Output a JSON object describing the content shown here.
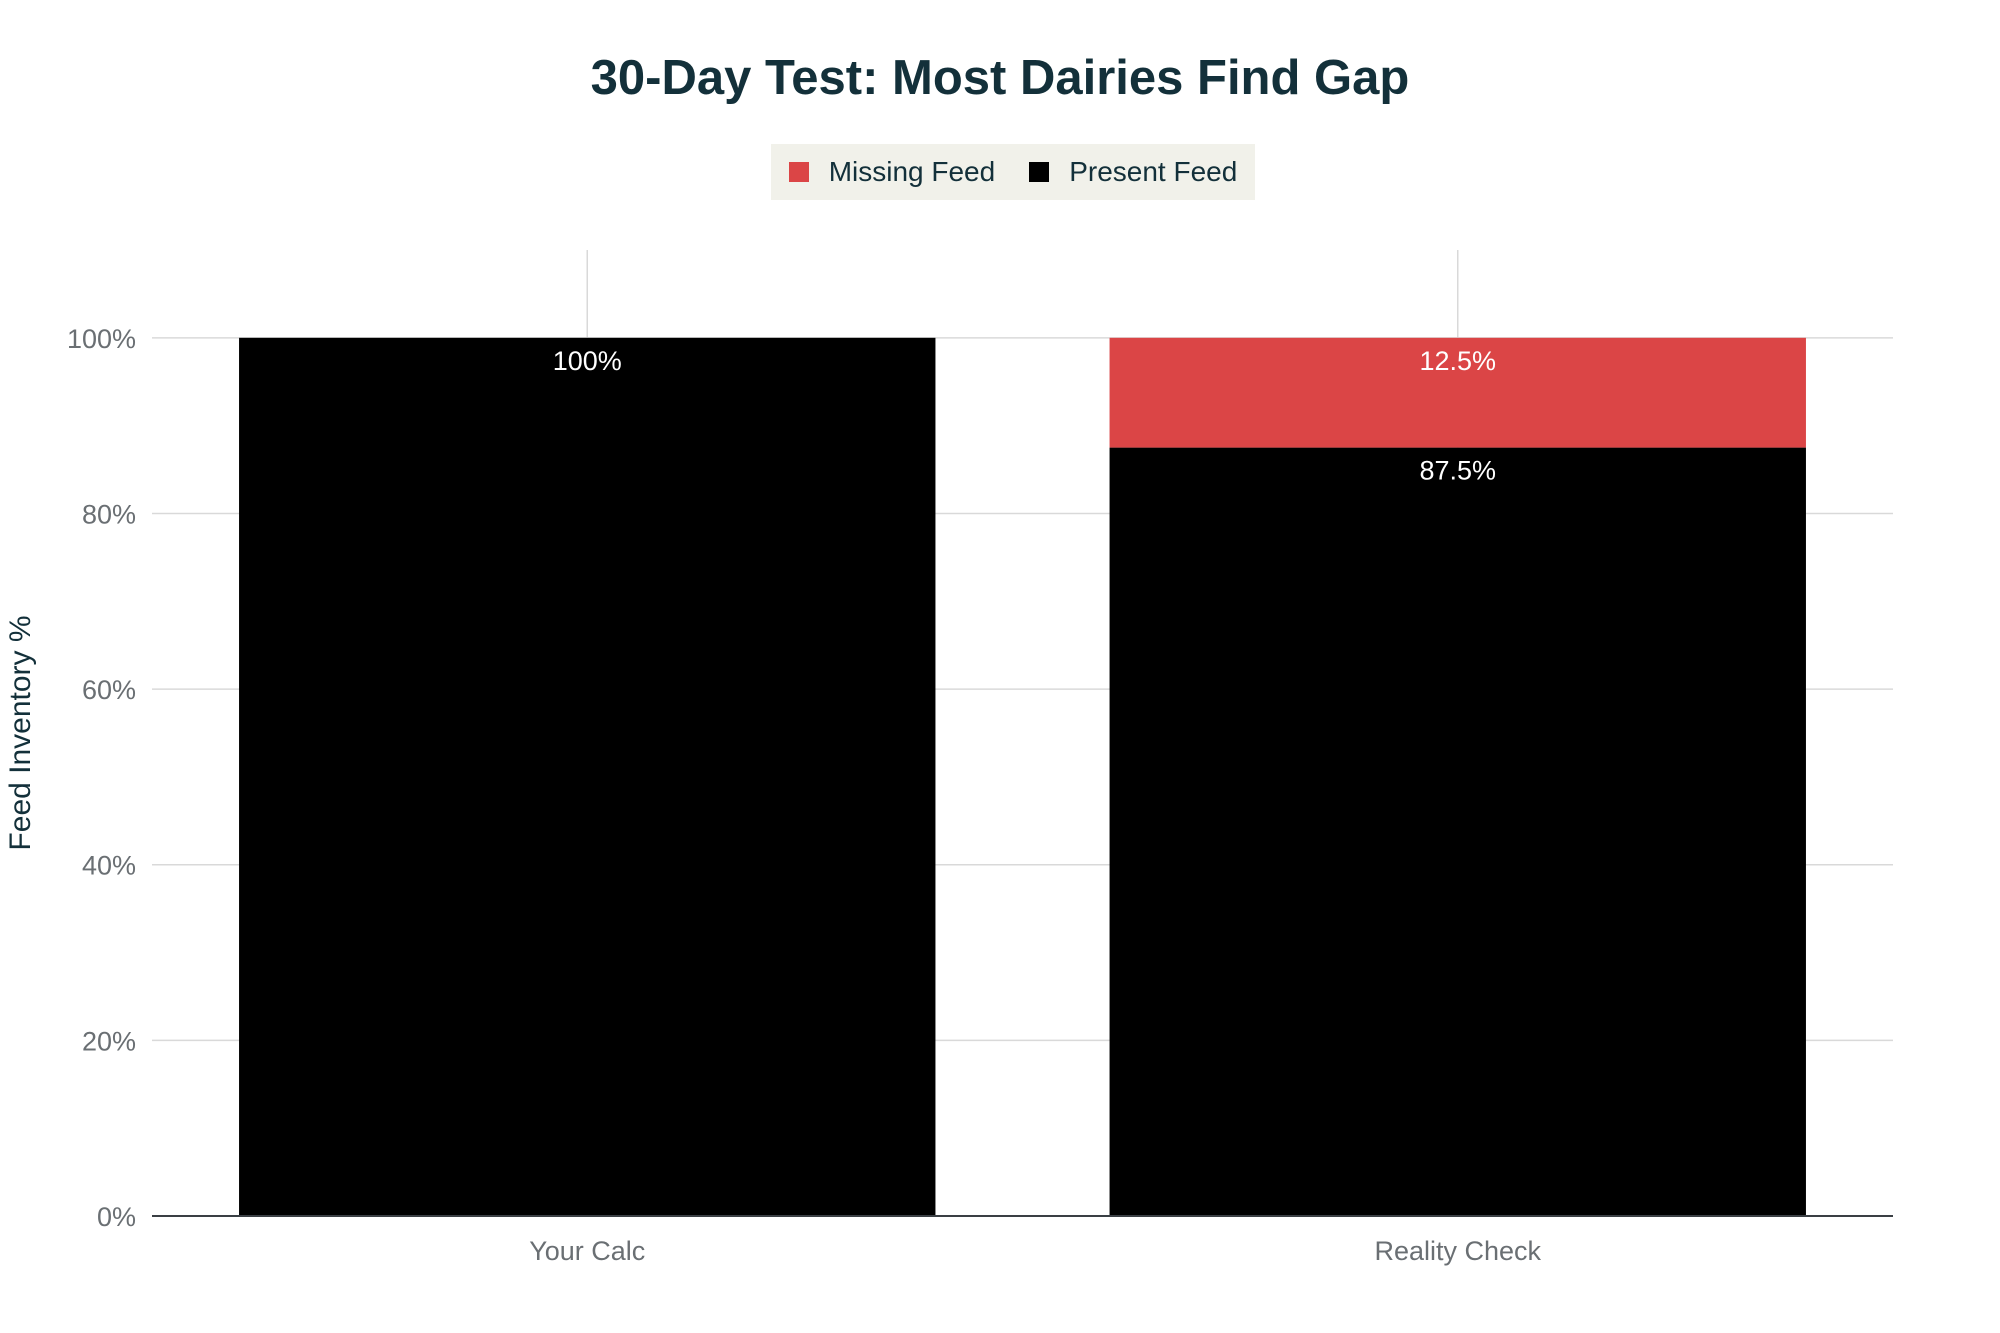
{
  "colors": {
    "missing": "#db4546",
    "present": "#000000",
    "title": "#13303a",
    "grid": "#d9d9d9",
    "tick_text": "#6a6f73",
    "legend_bg": "#f1f1ea"
  },
  "legend": {
    "missing_label": "Missing Feed",
    "present_label": "Present Feed"
  },
  "chart_data": {
    "type": "bar",
    "stacked": true,
    "title": "30-Day Test: Most Dairies Find Gap",
    "xlabel": "",
    "ylabel": "Feed Inventory %",
    "categories": [
      "Your Calc",
      "Reality Check"
    ],
    "series": [
      {
        "name": "Present Feed",
        "values": [
          100,
          87.5
        ],
        "labels": [
          "100%",
          "87.5%"
        ]
      },
      {
        "name": "Missing Feed",
        "values": [
          0,
          12.5
        ],
        "labels": [
          "",
          "12.5%"
        ]
      }
    ],
    "ylim": [
      0,
      110
    ],
    "yticks": [
      0,
      20,
      40,
      60,
      80,
      100
    ],
    "ytick_labels": [
      "0%",
      "20%",
      "40%",
      "60%",
      "80%",
      "100%"
    ],
    "grid": true,
    "legend_position": "top-center"
  }
}
